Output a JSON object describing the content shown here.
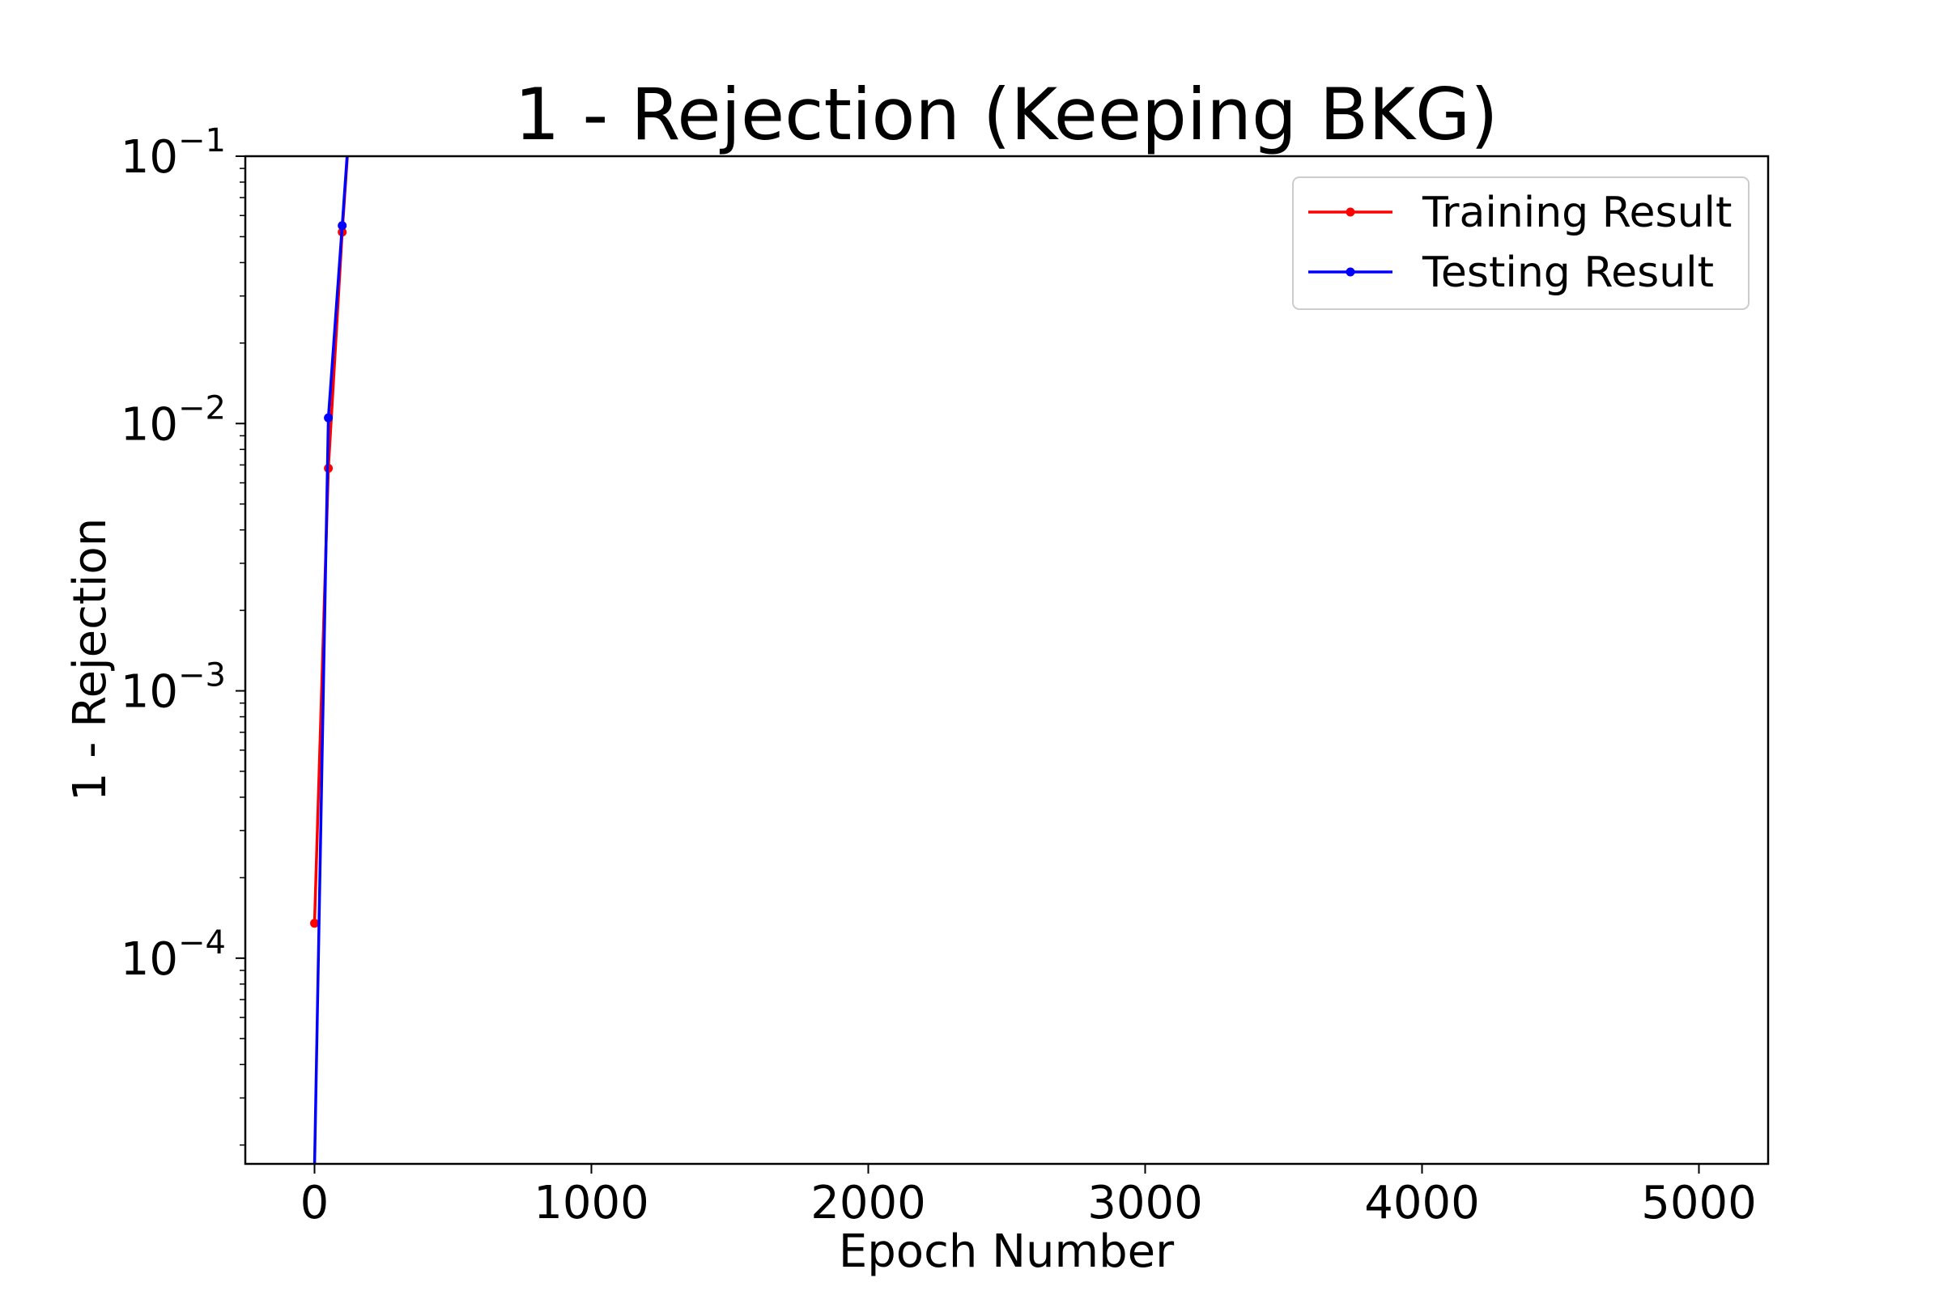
{
  "chart_data": {
    "type": "line",
    "title": "1 - Rejection (Keeping BKG)",
    "xlabel": "Epoch Number",
    "ylabel": "1 - Rejection",
    "xlim": [
      -250,
      5250
    ],
    "ylim": [
      1.7e-05,
      0.1
    ],
    "yscale": "log",
    "x_ticks": [
      0,
      1000,
      2000,
      3000,
      4000,
      5000
    ],
    "x_tick_labels": [
      "0",
      "1000",
      "2000",
      "3000",
      "4000",
      "5000"
    ],
    "y_ticks": [
      0.0001,
      0.001,
      0.01,
      0.1
    ],
    "y_tick_base": "10",
    "y_tick_exponents": [
      "−4",
      "−3",
      "−2",
      "−1"
    ],
    "grid": false,
    "legend_position": "top-right",
    "series": [
      {
        "name": "Training Result",
        "color": "#ff0000",
        "x": [
          0,
          50,
          100,
          150
        ],
        "y": [
          0.000135,
          0.0068,
          0.052,
          0.3
        ]
      },
      {
        "name": "Testing Result",
        "color": "#0000ff",
        "x": [
          0,
          50,
          100,
          150
        ],
        "y": [
          1.65e-05,
          0.0105,
          0.055,
          0.3
        ]
      }
    ]
  }
}
